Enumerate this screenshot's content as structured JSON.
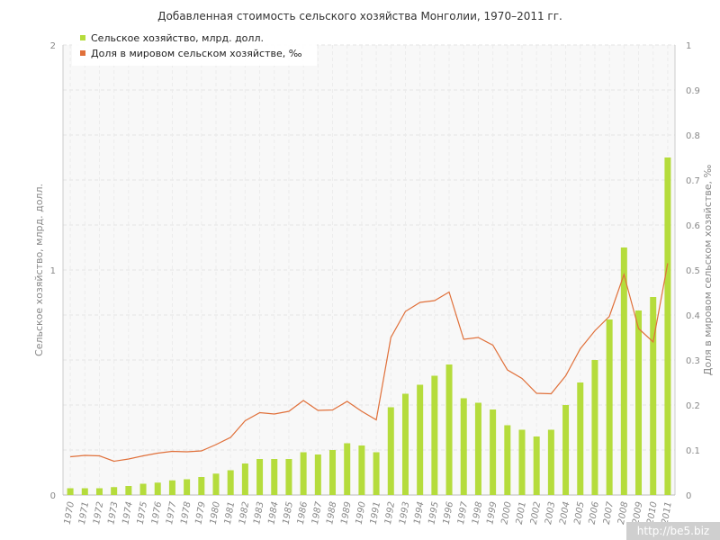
{
  "chart_data": {
    "type": "bar+line",
    "title": "Добавленная стоимость сельского хозяйства Монголии, 1970–2011 гг.",
    "categories": [
      "1970",
      "1971",
      "1972",
      "1973",
      "1974",
      "1975",
      "1976",
      "1977",
      "1978",
      "1979",
      "1980",
      "1981",
      "1982",
      "1983",
      "1984",
      "1985",
      "1986",
      "1987",
      "1988",
      "1989",
      "1990",
      "1991",
      "1992",
      "1993",
      "1994",
      "1995",
      "1996",
      "1997",
      "1998",
      "1999",
      "2000",
      "2001",
      "2002",
      "2003",
      "2004",
      "2005",
      "2006",
      "2007",
      "2008",
      "2009",
      "2010",
      "2011"
    ],
    "series": [
      {
        "name": "Сельское хозяйство, млрд. долл.",
        "kind": "bar",
        "axis": "left",
        "color": "#b5dc3c",
        "values": [
          0.03,
          0.03,
          0.03,
          0.035,
          0.04,
          0.05,
          0.055,
          0.065,
          0.07,
          0.08,
          0.095,
          0.11,
          0.14,
          0.16,
          0.16,
          0.16,
          0.19,
          0.18,
          0.2,
          0.23,
          0.22,
          0.19,
          0.39,
          0.45,
          0.49,
          0.53,
          0.58,
          0.43,
          0.41,
          0.38,
          0.31,
          0.29,
          0.26,
          0.29,
          0.4,
          0.5,
          0.6,
          0.78,
          1.1,
          0.82,
          0.88,
          1.5
        ]
      },
      {
        "name": "Доля в мировом сельском хозяйстве, ‰",
        "kind": "line",
        "axis": "right",
        "color": "#e0703a",
        "values": [
          0.085,
          0.088,
          0.087,
          0.075,
          0.08,
          0.087,
          0.093,
          0.097,
          0.096,
          0.098,
          0.112,
          0.128,
          0.165,
          0.183,
          0.18,
          0.186,
          0.21,
          0.188,
          0.189,
          0.208,
          0.186,
          0.167,
          0.35,
          0.408,
          0.428,
          0.432,
          0.451,
          0.346,
          0.35,
          0.333,
          0.278,
          0.259,
          0.226,
          0.225,
          0.265,
          0.325,
          0.365,
          0.397,
          0.49,
          0.37,
          0.34,
          0.515
        ]
      }
    ],
    "ylabel_left": "Сельское хозяйство, млрд. долл.",
    "ylabel_right": "Доля в мировом сельском хозяйстве, ‰",
    "ylim_left": [
      0,
      2
    ],
    "ylim_right": [
      0,
      1
    ],
    "yticks_left": [
      "0",
      "1",
      "2"
    ],
    "yticks_right": [
      "0",
      "0.1",
      "0.2",
      "0.3",
      "0.4",
      "0.5",
      "0.6",
      "0.7",
      "0.8",
      "0.9",
      "1"
    ],
    "grid": true,
    "legend_position": "top-left"
  },
  "watermark": "http://be5.biz"
}
